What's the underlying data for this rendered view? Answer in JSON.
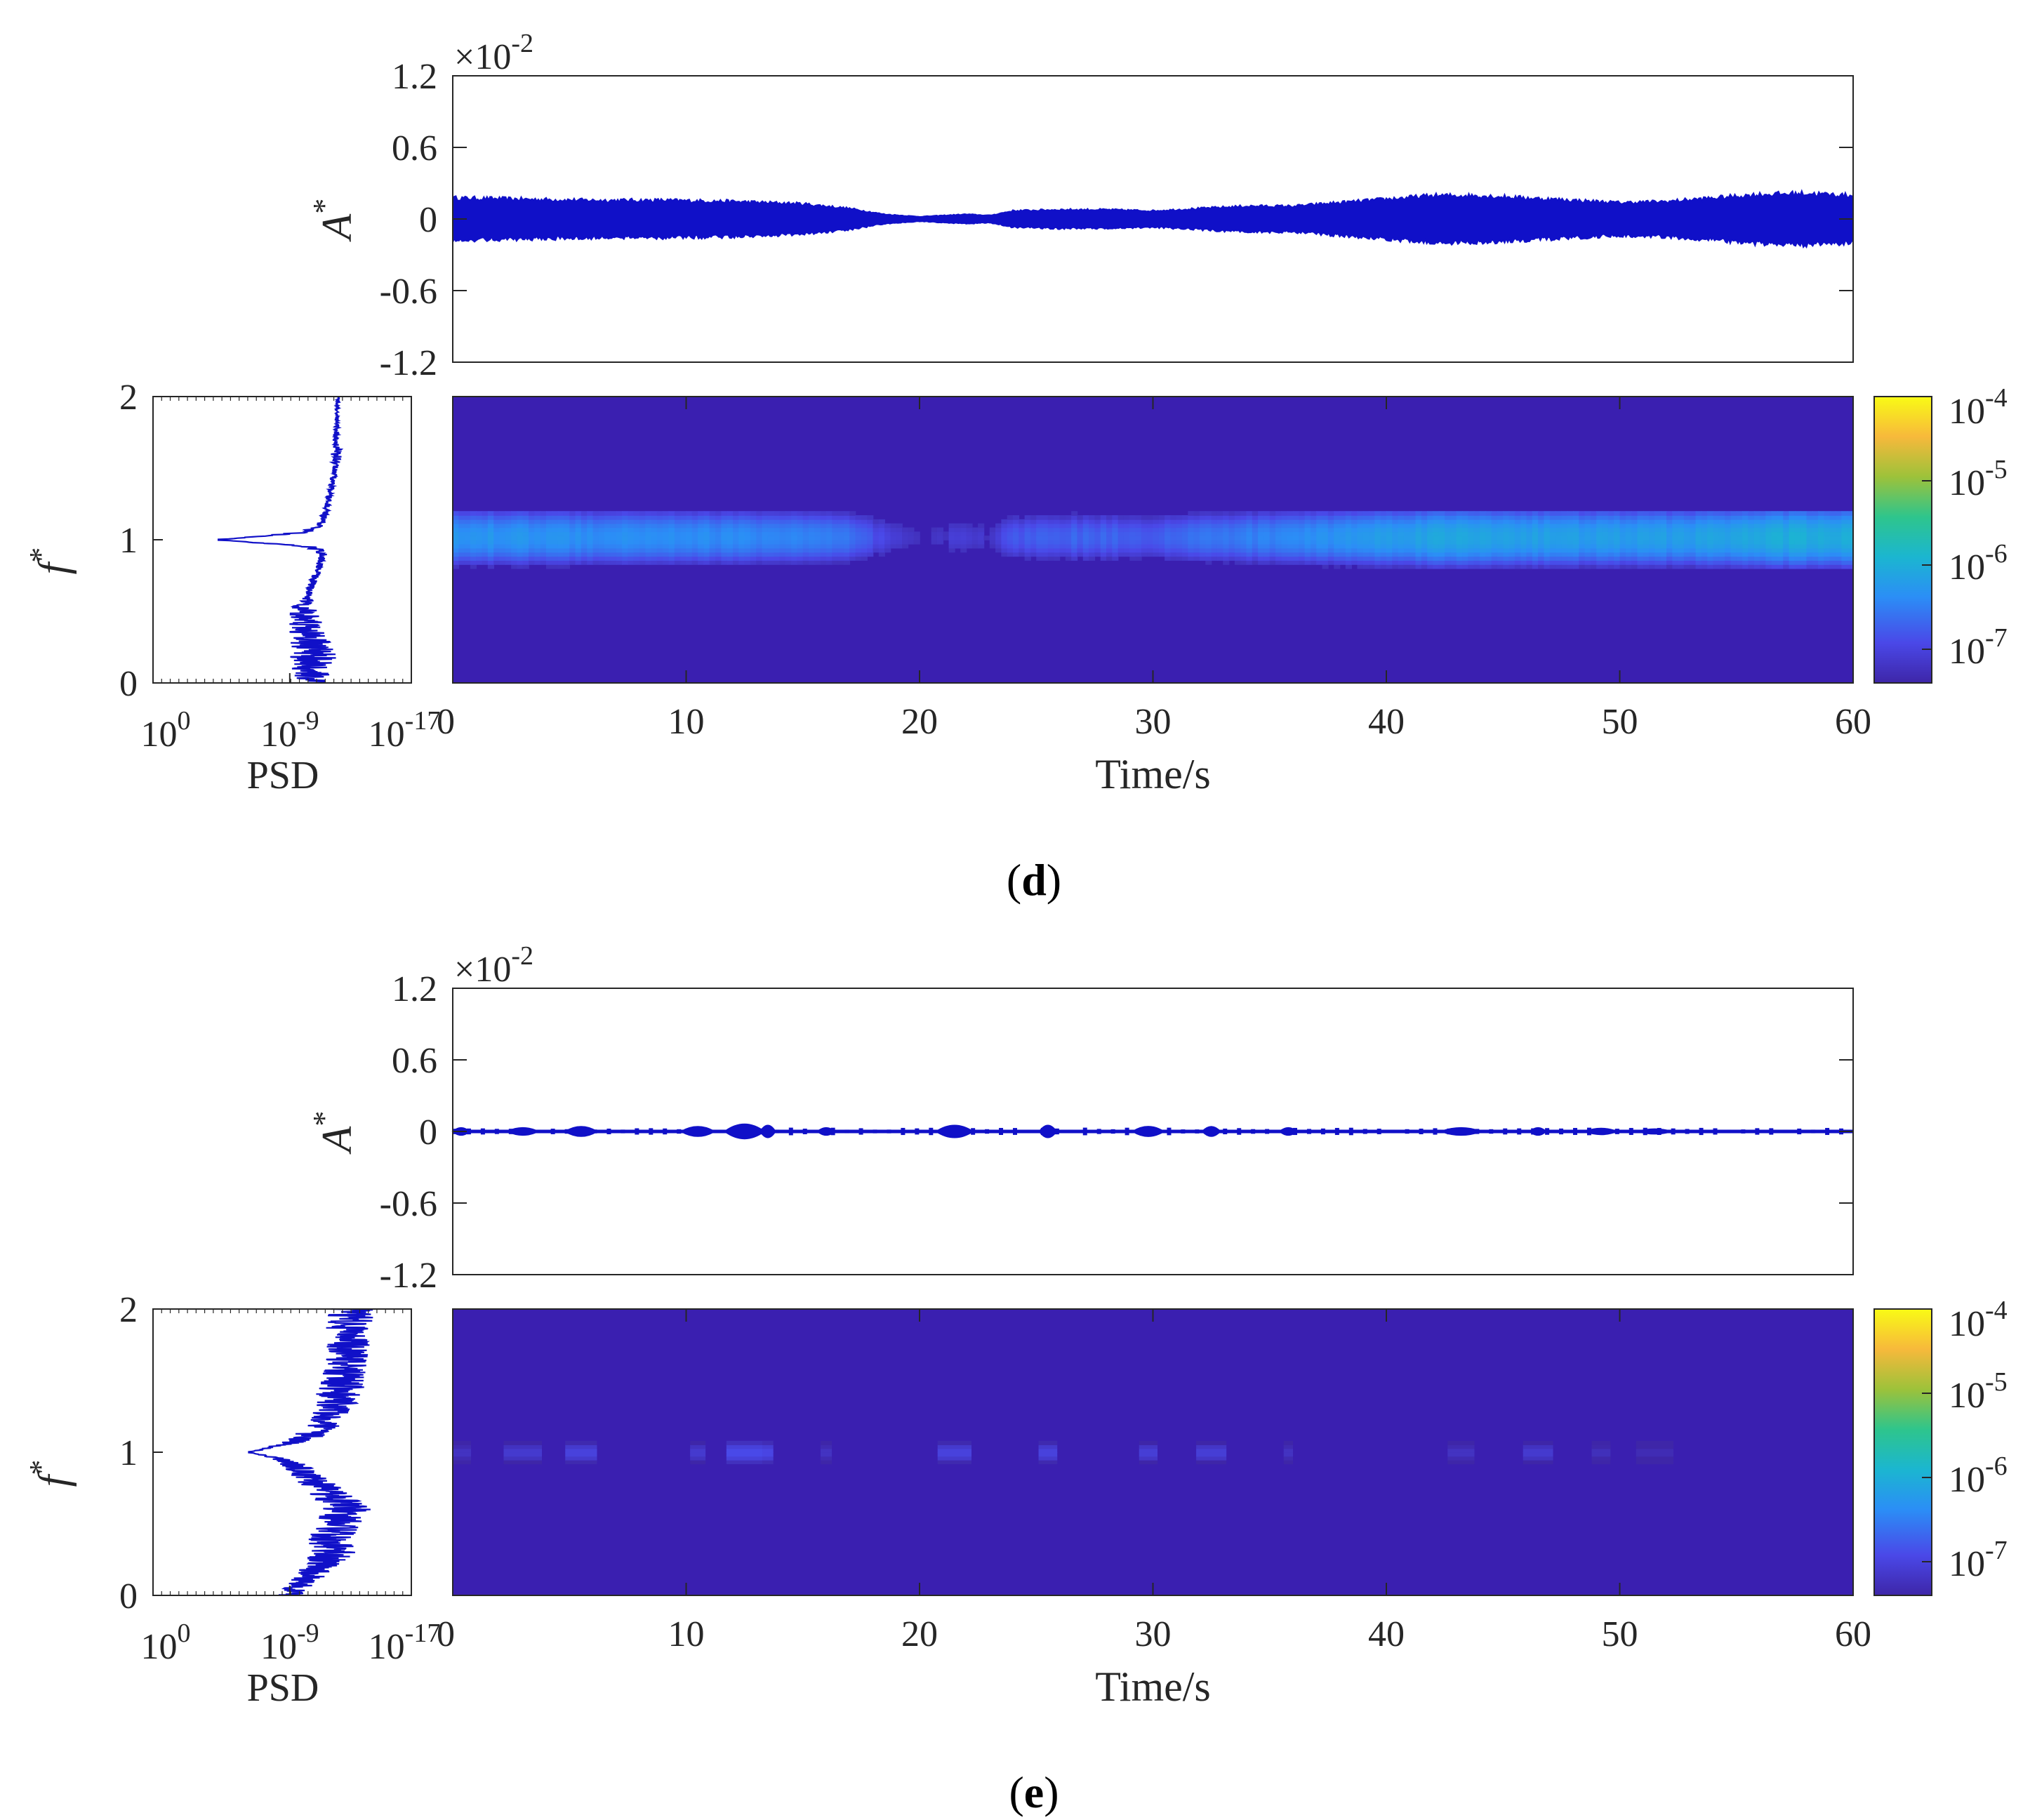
{
  "figure": {
    "panels": [
      {
        "caption_open": "(",
        "caption_label": "d",
        "caption_close": ")"
      },
      {
        "caption_open": "(",
        "caption_label": "e",
        "caption_close": ")"
      }
    ]
  },
  "colors": {
    "signal": "#1010c8",
    "background": "#3a1fb0",
    "axis": "#262626",
    "colormap": [
      "#3e26a8",
      "#4a48e8",
      "#2b8ef6",
      "#1bb6d0",
      "#2ec58c",
      "#9dc23a",
      "#f7b93b",
      "#f9fb15"
    ]
  },
  "chart_data": [
    {
      "panel": "d",
      "amplitude": {
        "type": "area",
        "ylabel": "A",
        "ylabel_sup": "*",
        "multiplier_base": "×10",
        "multiplier_exp": "-2",
        "xlim": [
          0,
          60
        ],
        "ylim": [
          -1.2,
          1.2
        ],
        "yticks": [
          "1.2",
          "0.6",
          "0",
          "-0.6",
          "-1.2"
        ],
        "yticks_values": [
          1.2,
          0.6,
          0,
          -0.6,
          -1.2
        ],
        "envelope_t": [
          0,
          3,
          6,
          9,
          12,
          15,
          17,
          18.5,
          20,
          21,
          22,
          23,
          24,
          26,
          28,
          30,
          32,
          34,
          36,
          38,
          40,
          42,
          44,
          46,
          48,
          50,
          52,
          54,
          56,
          58,
          60
        ],
        "envelope_amp": [
          0.18,
          0.17,
          0.16,
          0.16,
          0.15,
          0.13,
          0.09,
          0.04,
          0.02,
          0.03,
          0.04,
          0.03,
          0.07,
          0.08,
          0.08,
          0.07,
          0.09,
          0.11,
          0.11,
          0.14,
          0.17,
          0.2,
          0.2,
          0.18,
          0.16,
          0.14,
          0.15,
          0.18,
          0.21,
          0.22,
          0.2
        ]
      },
      "psd": {
        "type": "line",
        "xlabel": "PSD",
        "ylabel": "f",
        "ylabel_sup": "*",
        "ylim": [
          0,
          2
        ],
        "yticks": [
          "0",
          "1",
          "2"
        ],
        "yticks_values": [
          0,
          1,
          2
        ],
        "xticks_base": [
          "10",
          "10",
          "10"
        ],
        "xticks_exp": [
          "0",
          "-9",
          "-17"
        ],
        "xticks_log_values": [
          0,
          -9,
          -17
        ],
        "xlim_log": [
          0,
          -17
        ],
        "profile_f": [
          0.0,
          0.1,
          0.2,
          0.3,
          0.4,
          0.5,
          0.6,
          0.7,
          0.8,
          0.9,
          0.95,
          1.0,
          1.05,
          1.1,
          1.2,
          1.3,
          1.4,
          1.5,
          1.6,
          1.7,
          1.8,
          1.9,
          2.0
        ],
        "profile_log_psd": [
          -10.3,
          -10.5,
          -10.6,
          -10.3,
          -10.1,
          -9.8,
          -10.2,
          -10.5,
          -10.9,
          -11.2,
          -10.5,
          -4.3,
          -9.8,
          -11.0,
          -11.4,
          -11.6,
          -11.8,
          -12.0,
          -12.1,
          -12.0,
          -12.1,
          -12.1,
          -12.2
        ],
        "noise_amp": [
          1.0,
          1.4,
          1.6,
          1.3,
          1.2,
          1.0,
          0.3,
          0.25,
          0.25,
          0.3,
          0.6,
          0.0,
          0.6,
          0.3,
          0.2,
          0.2,
          0.2,
          0.2,
          0.4,
          0.2,
          0.15,
          0.1,
          0.1
        ]
      },
      "spectrogram": {
        "type": "heatmap",
        "xlabel": "Time/s",
        "xlim": [
          0,
          60
        ],
        "ylim": [
          0,
          2
        ],
        "xticks": [
          "0",
          "10",
          "20",
          "30",
          "40",
          "50",
          "60"
        ],
        "xticks_values": [
          0,
          10,
          20,
          30,
          40,
          50,
          60
        ],
        "band_low": 0.8,
        "band_high": 1.2,
        "band_t": [
          0,
          3,
          6,
          9,
          12,
          15,
          17,
          18.5,
          20,
          21,
          22,
          23,
          24,
          26,
          28,
          30,
          32,
          34,
          36,
          38,
          40,
          42,
          44,
          46,
          48,
          50,
          52,
          54,
          56,
          58,
          60
        ],
        "band_log_level": [
          -6.3,
          -6.3,
          -6.35,
          -6.35,
          -6.4,
          -6.45,
          -6.6,
          -7.0,
          -7.3,
          -7.2,
          -7.0,
          -7.2,
          -6.8,
          -6.7,
          -6.7,
          -6.75,
          -6.6,
          -6.5,
          -6.4,
          -6.3,
          -6.2,
          -6.1,
          -6.1,
          -6.15,
          -6.2,
          -6.2,
          -6.2,
          -6.15,
          -6.05,
          -6.0,
          -6.05
        ]
      },
      "colorbar": {
        "type": "heatmap",
        "ticks_base": [
          "10",
          "10",
          "10",
          "10"
        ],
        "ticks_exp": [
          "-4",
          "-5",
          "-6",
          "-7"
        ],
        "ticks_log_values": [
          -4,
          -5,
          -6,
          -7
        ],
        "range_log": [
          -7.4,
          -4
        ]
      }
    },
    {
      "panel": "e",
      "amplitude": {
        "type": "area",
        "ylabel": "A",
        "ylabel_sup": "*",
        "multiplier_base": "×10",
        "multiplier_exp": "-2",
        "xlim": [
          0,
          60
        ],
        "ylim": [
          -1.2,
          1.2
        ],
        "yticks": [
          "1.2",
          "0.6",
          "0",
          "-0.6",
          "-1.2"
        ],
        "yticks_values": [
          1.2,
          0.6,
          0,
          -0.6,
          -1.2
        ],
        "bursts_t": [
          0.2,
          3.0,
          5.5,
          10.5,
          12.5,
          13.5,
          16.0,
          21.5,
          25.5,
          29.8,
          32.5,
          35.8,
          43.2,
          46.5,
          49.2,
          51.5
        ],
        "bursts_amp": [
          0.03,
          0.03,
          0.04,
          0.04,
          0.06,
          0.05,
          0.03,
          0.05,
          0.05,
          0.04,
          0.04,
          0.03,
          0.03,
          0.03,
          0.025,
          0.02
        ]
      },
      "psd": {
        "type": "line",
        "xlabel": "PSD",
        "ylabel": "f",
        "ylabel_sup": "*",
        "ylim": [
          0,
          2
        ],
        "yticks": [
          "0",
          "1",
          "2"
        ],
        "yticks_values": [
          0,
          1,
          2
        ],
        "xticks_base": [
          "10",
          "10",
          "10"
        ],
        "xticks_exp": [
          "0",
          "-9",
          "-17"
        ],
        "xticks_log_values": [
          0,
          -9,
          -17
        ],
        "xlim_log": [
          0,
          -17
        ],
        "profile_f": [
          0.0,
          0.1,
          0.2,
          0.3,
          0.4,
          0.5,
          0.6,
          0.7,
          0.8,
          0.9,
          0.95,
          1.0,
          1.05,
          1.1,
          1.2,
          1.3,
          1.4,
          1.5,
          1.6,
          1.7,
          1.8,
          1.9,
          2.0
        ],
        "profile_log_psd": [
          -9.0,
          -10.0,
          -11.0,
          -11.8,
          -11.6,
          -12.3,
          -12.6,
          -11.8,
          -10.5,
          -9.5,
          -8.5,
          -6.3,
          -8.5,
          -10.0,
          -11.5,
          -11.8,
          -12.2,
          -12.5,
          -12.8,
          -12.8,
          -12.9,
          -12.9,
          -13.0
        ],
        "noise_amp": [
          0.8,
          1.0,
          1.2,
          1.5,
          1.6,
          1.4,
          1.8,
          1.4,
          1.2,
          1.0,
          0.6,
          0.0,
          0.6,
          1.0,
          1.2,
          1.4,
          1.5,
          1.6,
          1.4,
          1.4,
          1.5,
          1.6,
          1.5
        ]
      },
      "spectrogram": {
        "type": "heatmap",
        "xlabel": "Time/s",
        "xlim": [
          0,
          60
        ],
        "ylim": [
          0,
          2
        ],
        "xticks": [
          "0",
          "10",
          "20",
          "30",
          "40",
          "50",
          "60"
        ],
        "xticks_values": [
          0,
          10,
          20,
          30,
          40,
          50,
          60
        ],
        "band_low": 0.92,
        "band_high": 1.08,
        "bursts_t": [
          0.2,
          3.0,
          5.5,
          10.5,
          12.5,
          13.5,
          16.0,
          21.5,
          25.5,
          29.8,
          32.5,
          35.8,
          43.2,
          46.5,
          49.2,
          51.5
        ],
        "bursts_log_level": [
          -7.2,
          -7.1,
          -7.0,
          -7.1,
          -6.9,
          -6.95,
          -7.2,
          -7.0,
          -7.0,
          -7.05,
          -7.05,
          -7.2,
          -7.2,
          -7.1,
          -7.25,
          -7.3
        ]
      },
      "colorbar": {
        "type": "heatmap",
        "ticks_base": [
          "10",
          "10",
          "10",
          "10"
        ],
        "ticks_exp": [
          "-4",
          "-5",
          "-6",
          "-7"
        ],
        "ticks_log_values": [
          -4,
          -5,
          -6,
          -7
        ],
        "range_log": [
          -7.4,
          -4
        ]
      }
    }
  ]
}
